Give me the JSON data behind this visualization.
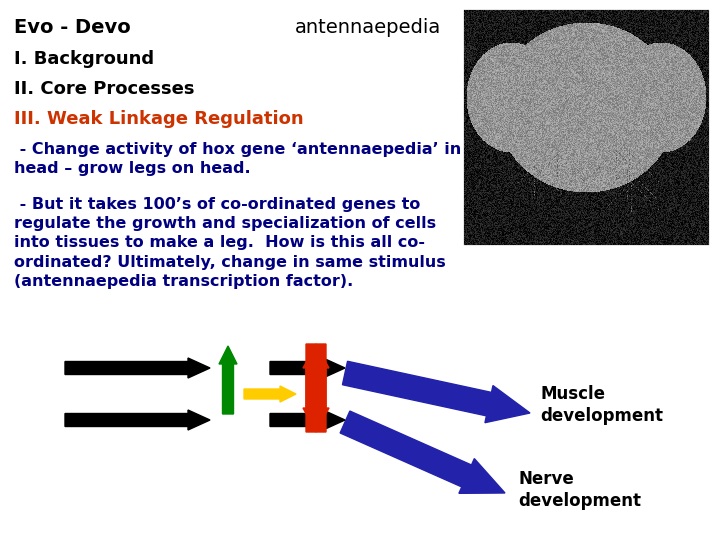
{
  "title_line1": "Evo - Devo",
  "title_line2": "antennaepedia",
  "heading1": "I. Background",
  "heading2": "II. Core Processes",
  "heading3": "III. Weak Linkage Regulation",
  "heading3_color": "#cc3300",
  "text1": " - Change activity of hox gene ‘antennaepedia’ in\nhead – grow legs on head.",
  "text2": " - But it takes 100’s of co-ordinated genes to\nregulate the growth and specialization of cells\ninto tissues to make a leg.  How is this all co-\nordinated? Ultimately, change in same stimulus\n(antennaepedia transcription factor).",
  "text_color": "#000080",
  "bg_color": "#ffffff",
  "label_muscle": "Muscle\ndevelopment",
  "label_nerve": "Nerve\ndevelopment",
  "black_arrow_color": "#000000",
  "red_arrow_color": "#dd2200",
  "green_arrow_color": "#008800",
  "yellow_arrow_color": "#ffcc00",
  "blue_arrow_color": "#2222aa"
}
